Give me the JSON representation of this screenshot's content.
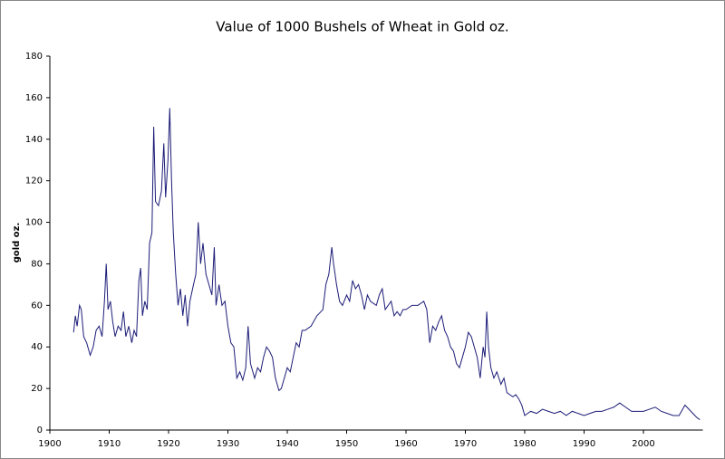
{
  "chart_data": {
    "type": "line",
    "title": "Value of 1000 Bushels of Wheat in Gold oz.",
    "ylabel": "gold oz.",
    "color": "#1c1c78",
    "x": [
      1904.0,
      1904.3,
      1904.6,
      1905.0,
      1905.3,
      1905.7,
      1906.2,
      1906.8,
      1907.3,
      1907.8,
      1908.3,
      1908.8,
      1909.2,
      1909.5,
      1909.8,
      1910.2,
      1910.6,
      1911.0,
      1911.5,
      1912.0,
      1912.4,
      1912.8,
      1913.3,
      1913.8,
      1914.2,
      1914.6,
      1915.0,
      1915.3,
      1915.6,
      1916.0,
      1916.4,
      1916.8,
      1917.2,
      1917.5,
      1917.8,
      1918.3,
      1918.8,
      1919.2,
      1919.5,
      1919.9,
      1920.2,
      1920.5,
      1920.8,
      1921.2,
      1921.6,
      1922.0,
      1922.4,
      1922.8,
      1923.2,
      1923.6,
      1924.2,
      1924.6,
      1925.0,
      1925.4,
      1925.8,
      1926.3,
      1926.8,
      1927.3,
      1927.7,
      1928.0,
      1928.5,
      1929.0,
      1929.5,
      1930.0,
      1930.5,
      1931.0,
      1931.5,
      1932.0,
      1932.5,
      1933.0,
      1933.4,
      1933.8,
      1934.5,
      1935.0,
      1935.5,
      1936.0,
      1936.5,
      1937.0,
      1937.5,
      1938.0,
      1938.6,
      1939.0,
      1939.5,
      1940.0,
      1940.5,
      1941.0,
      1941.5,
      1942.0,
      1942.5,
      1943.0,
      1944.0,
      1945.0,
      1946.0,
      1946.5,
      1947.0,
      1947.5,
      1947.8,
      1948.3,
      1948.8,
      1949.3,
      1950.0,
      1950.5,
      1951.0,
      1951.5,
      1952.0,
      1952.5,
      1953.0,
      1953.5,
      1954.0,
      1955.0,
      1955.5,
      1956.0,
      1956.5,
      1957.0,
      1957.5,
      1958.0,
      1958.5,
      1959.0,
      1959.5,
      1960.0,
      1961.0,
      1962.0,
      1963.0,
      1963.5,
      1964.0,
      1964.5,
      1965.0,
      1965.5,
      1966.0,
      1966.5,
      1967.0,
      1967.5,
      1968.0,
      1968.5,
      1969.0,
      1969.5,
      1970.0,
      1970.5,
      1971.0,
      1971.5,
      1972.0,
      1972.5,
      1973.0,
      1973.3,
      1973.6,
      1973.9,
      1974.3,
      1974.8,
      1975.3,
      1976.0,
      1976.5,
      1977.0,
      1977.5,
      1978.0,
      1978.5,
      1979.0,
      1979.5,
      1980.0,
      1980.5,
      1981.0,
      1982.0,
      1983.0,
      1984.0,
      1985.0,
      1986.0,
      1987.0,
      1988.0,
      1989.0,
      1990.0,
      1991.0,
      1992.0,
      1993.0,
      1994.0,
      1995.0,
      1996.0,
      1997.0,
      1998.0,
      1999.0,
      2000.0,
      2001.0,
      2002.0,
      2003.0,
      2004.0,
      2005.0,
      2006.0,
      2007.0,
      2008.0,
      2009.0,
      2009.5
    ],
    "values": [
      47,
      55,
      50,
      60,
      58,
      45,
      42,
      36,
      40,
      48,
      50,
      45,
      62,
      80,
      58,
      62,
      52,
      45,
      50,
      48,
      57,
      45,
      50,
      42,
      48,
      45,
      72,
      78,
      55,
      62,
      58,
      90,
      95,
      146,
      110,
      108,
      115,
      138,
      112,
      130,
      155,
      120,
      95,
      75,
      60,
      68,
      55,
      65,
      50,
      62,
      70,
      75,
      100,
      80,
      90,
      75,
      70,
      65,
      88,
      60,
      70,
      60,
      62,
      50,
      42,
      40,
      25,
      28,
      24,
      30,
      50,
      32,
      25,
      30,
      28,
      35,
      40,
      38,
      35,
      25,
      19,
      20,
      25,
      30,
      28,
      35,
      42,
      40,
      48,
      48,
      50,
      55,
      58,
      70,
      75,
      88,
      80,
      70,
      62,
      60,
      65,
      62,
      72,
      68,
      70,
      65,
      58,
      65,
      62,
      60,
      65,
      68,
      58,
      60,
      62,
      55,
      57,
      55,
      58,
      58,
      60,
      60,
      62,
      58,
      42,
      50,
      48,
      52,
      55,
      48,
      45,
      40,
      38,
      32,
      30,
      35,
      40,
      47,
      45,
      40,
      35,
      25,
      40,
      35,
      57,
      40,
      30,
      25,
      28,
      22,
      25,
      18,
      17,
      16,
      17,
      15,
      12,
      7,
      8,
      9,
      8,
      10,
      9,
      8,
      9,
      7,
      9,
      8,
      7,
      8,
      9,
      9,
      10,
      11,
      13,
      11,
      9,
      9,
      9,
      10,
      11,
      9,
      8,
      7,
      7,
      12,
      9,
      6,
      5
    ],
    "xlim": [
      1900,
      2010
    ],
    "xticks": [
      1900,
      1910,
      1920,
      1930,
      1940,
      1950,
      1960,
      1970,
      1980,
      1990,
      2000
    ],
    "ylim": [
      0,
      180
    ],
    "yticks": [
      0,
      20,
      40,
      60,
      80,
      100,
      120,
      140,
      160,
      180
    ],
    "grid": false
  }
}
